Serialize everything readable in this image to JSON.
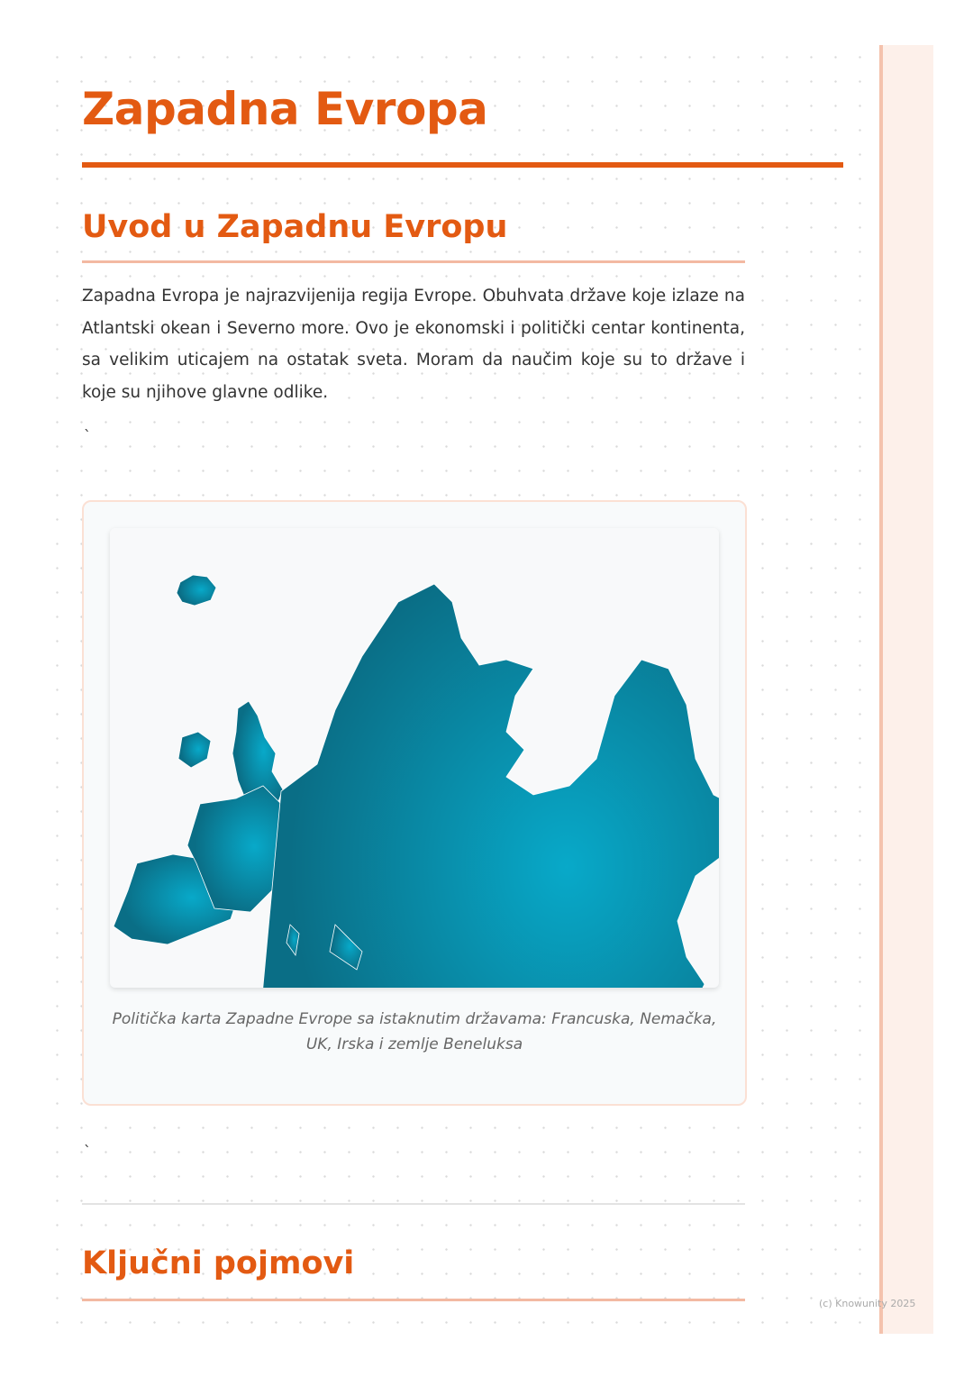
{
  "title": "Zapadna Evropa",
  "sections": [
    {
      "heading": "Uvod u Zapadnu Evropu",
      "paragraph": "Zapadna Evropa je najrazvijenija regija Evrope. Obuhvata države koje izlaze na Atlantski okean i Severno more. Ovo je ekonomski i politički centar kontinenta, sa velikim uticajem na ostatak sveta. Moram da naučim koje su to države i koje su njihove glavne odlike.",
      "stray_mark": "`",
      "figure": {
        "image": "map-of-europe",
        "caption": "Politička karta Zapadne Evrope sa istaknutim državama: Francuska, Nemačka, UK, Irska i zemlje Beneluksa",
        "map_color": "#0a7790"
      },
      "stray_mark_2": "`"
    },
    {
      "heading": "Ključni pojmovi"
    }
  ],
  "colors": {
    "accent": "#e35a12",
    "accent_light": "#f3b9a2"
  },
  "footer": {
    "copyright": "(c) Knowunity 2025"
  }
}
